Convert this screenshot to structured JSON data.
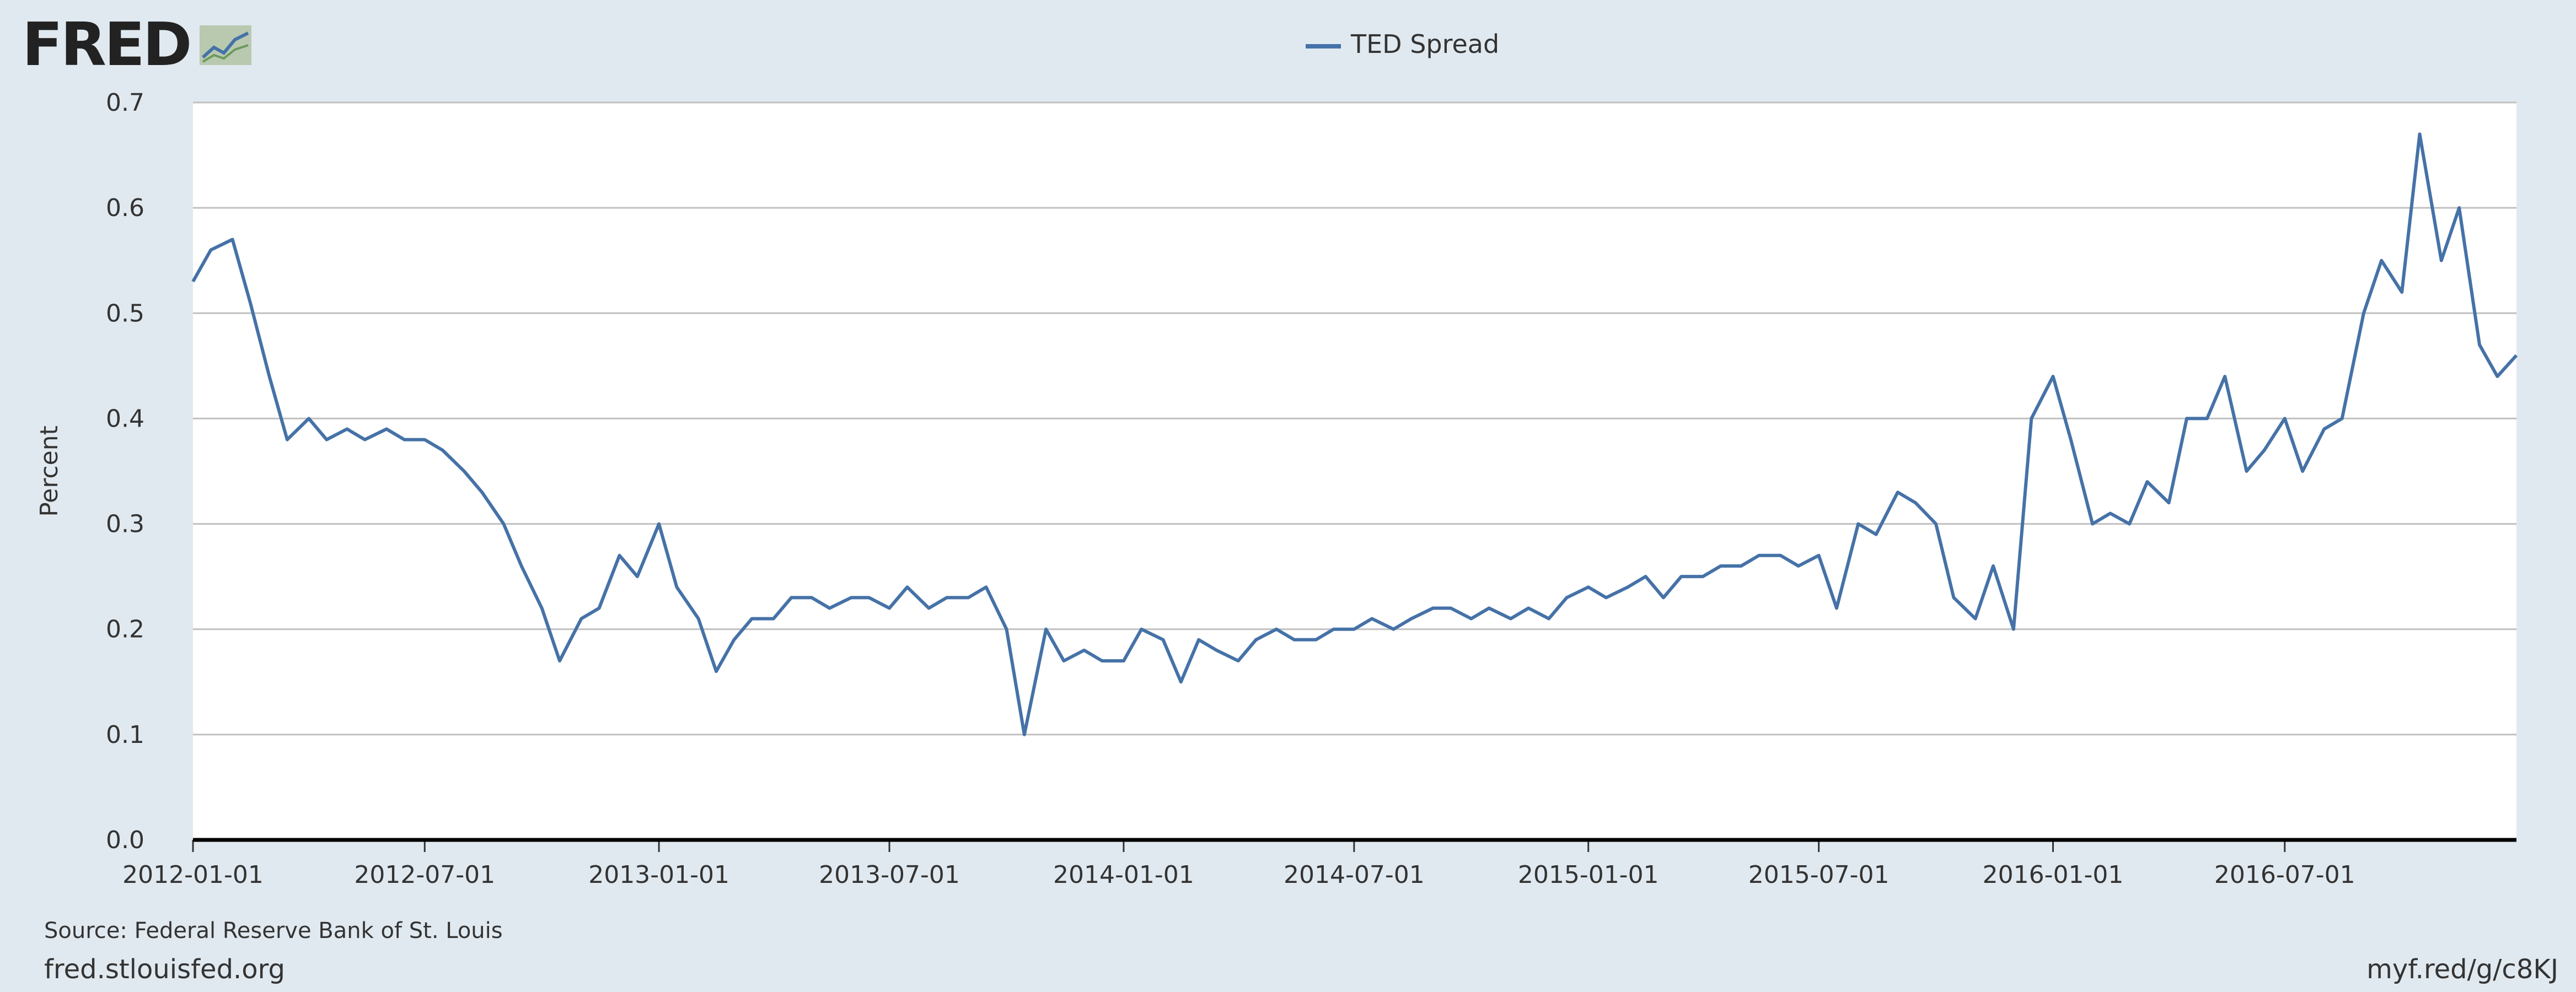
{
  "brand": {
    "logo_text": "FRED"
  },
  "footer": {
    "source": "Source: Federal Reserve Bank of St. Louis",
    "site": "fred.stlouisfed.org",
    "short_url": "myf.red/g/c8KJ"
  },
  "colors": {
    "background": "#e1e9f0",
    "plot_bg": "#ffffff",
    "series": "#4572a7",
    "grid": "#c0c0c0",
    "text": "#333333"
  },
  "chart_data": {
    "type": "line",
    "title": "",
    "xlabel": "",
    "ylabel": "Percent",
    "ylim": [
      0.0,
      0.7
    ],
    "y_ticks": [
      0.0,
      0.1,
      0.2,
      0.3,
      0.4,
      0.5,
      0.6,
      0.7
    ],
    "y_tick_labels": [
      "0.0",
      "0.1",
      "0.2",
      "0.3",
      "0.4",
      "0.5",
      "0.6",
      "0.7"
    ],
    "x_range": [
      "2012-01-01",
      "2016-12-30"
    ],
    "x_ticks": [
      "2012-01-01",
      "2012-07-01",
      "2013-01-01",
      "2013-07-01",
      "2014-01-01",
      "2014-07-01",
      "2015-01-01",
      "2015-07-01",
      "2016-01-01",
      "2016-07-01"
    ],
    "grid": true,
    "legend": {
      "position": "top-center",
      "entries": [
        "TED Spread"
      ]
    },
    "series": [
      {
        "name": "TED Spread",
        "x": [
          "2012-01-01",
          "2012-01-15",
          "2012-02-01",
          "2012-02-15",
          "2012-03-01",
          "2012-03-15",
          "2012-04-01",
          "2012-04-15",
          "2012-05-01",
          "2012-05-15",
          "2012-06-01",
          "2012-06-15",
          "2012-07-01",
          "2012-07-15",
          "2012-08-01",
          "2012-08-15",
          "2012-09-01",
          "2012-09-15",
          "2012-10-01",
          "2012-10-15",
          "2012-11-01",
          "2012-11-15",
          "2012-12-01",
          "2012-12-15",
          "2013-01-01",
          "2013-01-15",
          "2013-02-01",
          "2013-02-15",
          "2013-03-01",
          "2013-03-15",
          "2013-04-01",
          "2013-04-15",
          "2013-05-01",
          "2013-05-15",
          "2013-06-01",
          "2013-06-15",
          "2013-07-01",
          "2013-07-15",
          "2013-08-01",
          "2013-08-15",
          "2013-09-01",
          "2013-09-15",
          "2013-10-01",
          "2013-10-15",
          "2013-11-01",
          "2013-11-15",
          "2013-12-01",
          "2013-12-15",
          "2014-01-01",
          "2014-01-15",
          "2014-02-01",
          "2014-02-15",
          "2014-03-01",
          "2014-03-15",
          "2014-04-01",
          "2014-04-15",
          "2014-05-01",
          "2014-05-15",
          "2014-06-01",
          "2014-06-15",
          "2014-07-01",
          "2014-07-15",
          "2014-08-01",
          "2014-08-15",
          "2014-09-01",
          "2014-09-15",
          "2014-10-01",
          "2014-10-15",
          "2014-11-01",
          "2014-11-15",
          "2014-12-01",
          "2014-12-15",
          "2015-01-01",
          "2015-01-15",
          "2015-02-01",
          "2015-02-15",
          "2015-03-01",
          "2015-03-15",
          "2015-04-01",
          "2015-04-15",
          "2015-05-01",
          "2015-05-15",
          "2015-06-01",
          "2015-06-15",
          "2015-07-01",
          "2015-07-15",
          "2015-08-01",
          "2015-08-15",
          "2015-09-01",
          "2015-09-15",
          "2015-10-01",
          "2015-10-15",
          "2015-11-01",
          "2015-11-15",
          "2015-12-01",
          "2015-12-15",
          "2016-01-01",
          "2016-01-15",
          "2016-02-01",
          "2016-02-15",
          "2016-03-01",
          "2016-03-15",
          "2016-04-01",
          "2016-04-15",
          "2016-05-01",
          "2016-05-15",
          "2016-06-01",
          "2016-06-15",
          "2016-07-01",
          "2016-07-15",
          "2016-08-01",
          "2016-08-15",
          "2016-09-01",
          "2016-09-15",
          "2016-10-01",
          "2016-10-15",
          "2016-11-01",
          "2016-11-15",
          "2016-12-01",
          "2016-12-15",
          "2016-12-30"
        ],
        "values": [
          0.53,
          0.56,
          0.57,
          0.51,
          0.44,
          0.38,
          0.4,
          0.38,
          0.39,
          0.38,
          0.39,
          0.38,
          0.38,
          0.37,
          0.35,
          0.33,
          0.3,
          0.26,
          0.22,
          0.17,
          0.21,
          0.22,
          0.27,
          0.25,
          0.3,
          0.24,
          0.21,
          0.16,
          0.19,
          0.21,
          0.21,
          0.23,
          0.23,
          0.22,
          0.23,
          0.23,
          0.22,
          0.24,
          0.22,
          0.23,
          0.23,
          0.24,
          0.2,
          0.1,
          0.2,
          0.17,
          0.18,
          0.17,
          0.17,
          0.2,
          0.19,
          0.15,
          0.19,
          0.18,
          0.17,
          0.19,
          0.2,
          0.19,
          0.19,
          0.2,
          0.2,
          0.21,
          0.2,
          0.21,
          0.22,
          0.22,
          0.21,
          0.22,
          0.21,
          0.22,
          0.21,
          0.23,
          0.24,
          0.23,
          0.24,
          0.25,
          0.23,
          0.25,
          0.25,
          0.26,
          0.26,
          0.27,
          0.27,
          0.26,
          0.27,
          0.22,
          0.3,
          0.29,
          0.33,
          0.32,
          0.3,
          0.23,
          0.21,
          0.26,
          0.2,
          0.4,
          0.44,
          0.38,
          0.3,
          0.31,
          0.3,
          0.34,
          0.32,
          0.4,
          0.4,
          0.44,
          0.35,
          0.37,
          0.4,
          0.35,
          0.39,
          0.4,
          0.5,
          0.55,
          0.52,
          0.67,
          0.55,
          0.6,
          0.47,
          0.44,
          0.46
        ]
      }
    ]
  }
}
